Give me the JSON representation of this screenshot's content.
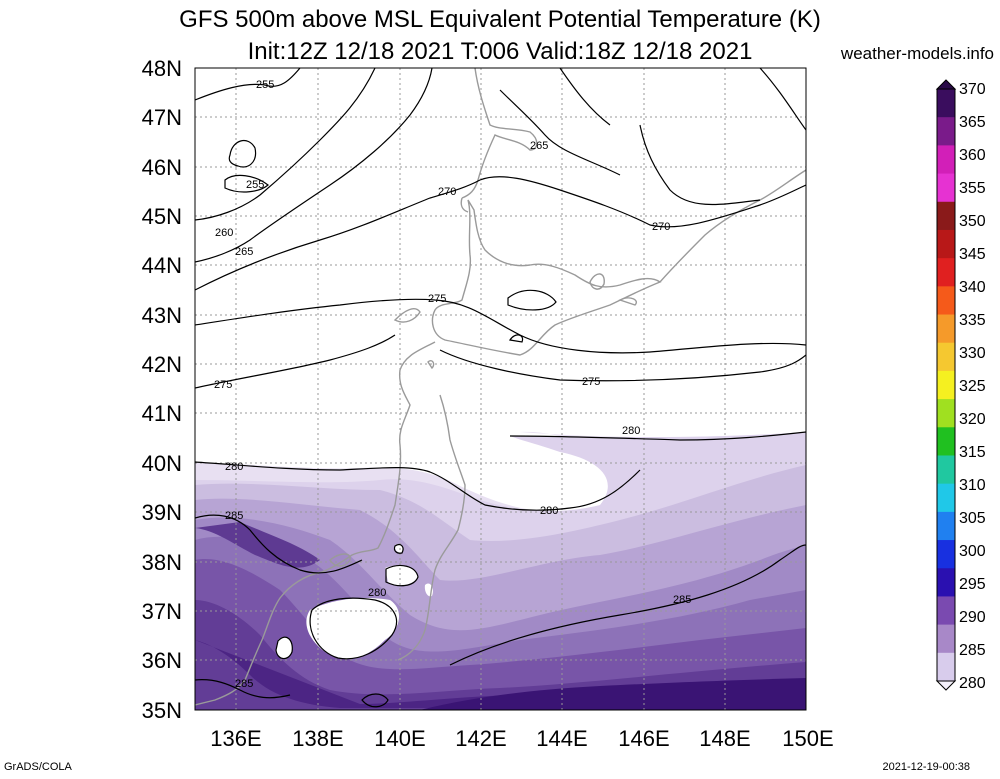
{
  "header": {
    "title": "GFS 500m above MSL Equivalent Potential Temperature (K)",
    "subtitle": "Init:12Z 12/18 2021 T:006 Valid:18Z 12/18 2021",
    "brand": "weather-models.info"
  },
  "map": {
    "lat_labels": [
      "48N",
      "47N",
      "46N",
      "45N",
      "44N",
      "43N",
      "42N",
      "41N",
      "40N",
      "39N",
      "38N",
      "37N",
      "36N",
      "35N"
    ],
    "lon_labels": [
      "136E",
      "138E",
      "140E",
      "142E",
      "144E",
      "146E",
      "148E",
      "150E"
    ],
    "contour_labels": [
      {
        "text": "255"
      },
      {
        "text": "255"
      },
      {
        "text": "260"
      },
      {
        "text": "265"
      },
      {
        "text": "265"
      },
      {
        "text": "270"
      },
      {
        "text": "270"
      },
      {
        "text": "275"
      },
      {
        "text": "275"
      },
      {
        "text": "275"
      },
      {
        "text": "280"
      },
      {
        "text": "280"
      },
      {
        "text": "280"
      },
      {
        "text": "280"
      },
      {
        "text": "285"
      },
      {
        "text": "285"
      },
      {
        "text": "285"
      }
    ]
  },
  "colorbar": {
    "labels": [
      "370",
      "365",
      "360",
      "355",
      "350",
      "345",
      "340",
      "335",
      "330",
      "325",
      "320",
      "315",
      "310",
      "305",
      "300",
      "295",
      "290",
      "285",
      "280"
    ],
    "colors": [
      "#3a0d5e",
      "#7a1b8a",
      "#d21fb8",
      "#e632d2",
      "#8a1a1a",
      "#b81818",
      "#e02020",
      "#f55a1a",
      "#f59a2a",
      "#f5c830",
      "#f5f020",
      "#a0e020",
      "#20c020",
      "#20c8a0",
      "#20c8e8",
      "#2080f0",
      "#1830e0",
      "#2a10b0",
      "#7a4ab0",
      "#a888c8",
      "#d8ccec"
    ]
  },
  "footer": {
    "left": "GrADS/COLA",
    "right": "2021-12-19-00:38"
  }
}
